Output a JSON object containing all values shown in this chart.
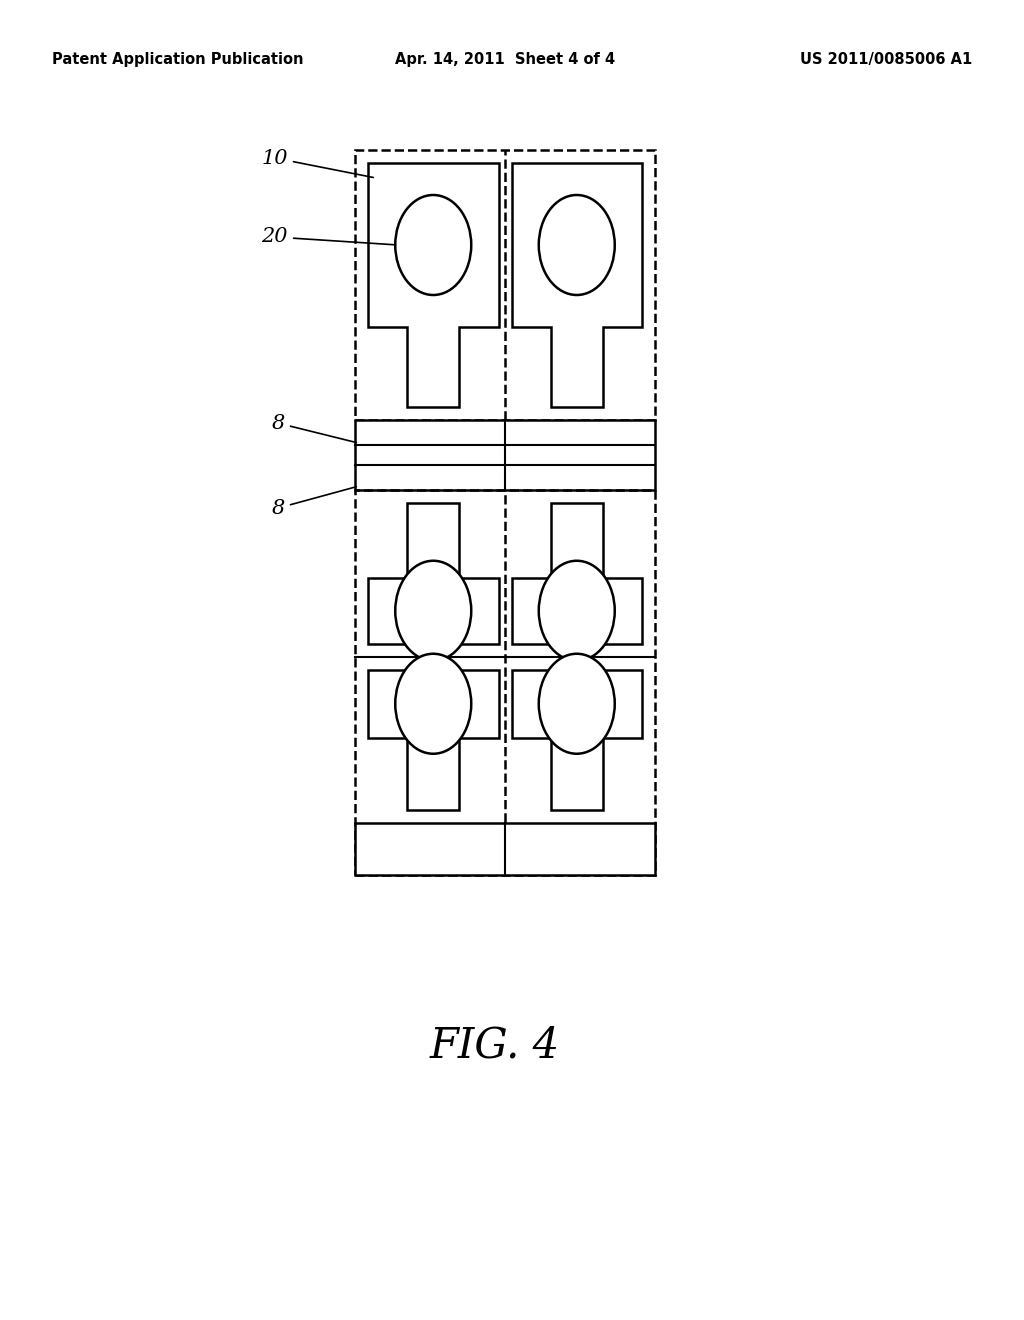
{
  "bg_color": "#ffffff",
  "line_color": "#000000",
  "header_left": "Patent Application Publication",
  "header_center": "Apr. 14, 2011  Sheet 4 of 4",
  "header_right": "US 2011/0085006 A1",
  "figure_label": "FIG. 4",
  "label_10": "10",
  "label_20": "20",
  "label_8a": "8",
  "label_8b": "8"
}
